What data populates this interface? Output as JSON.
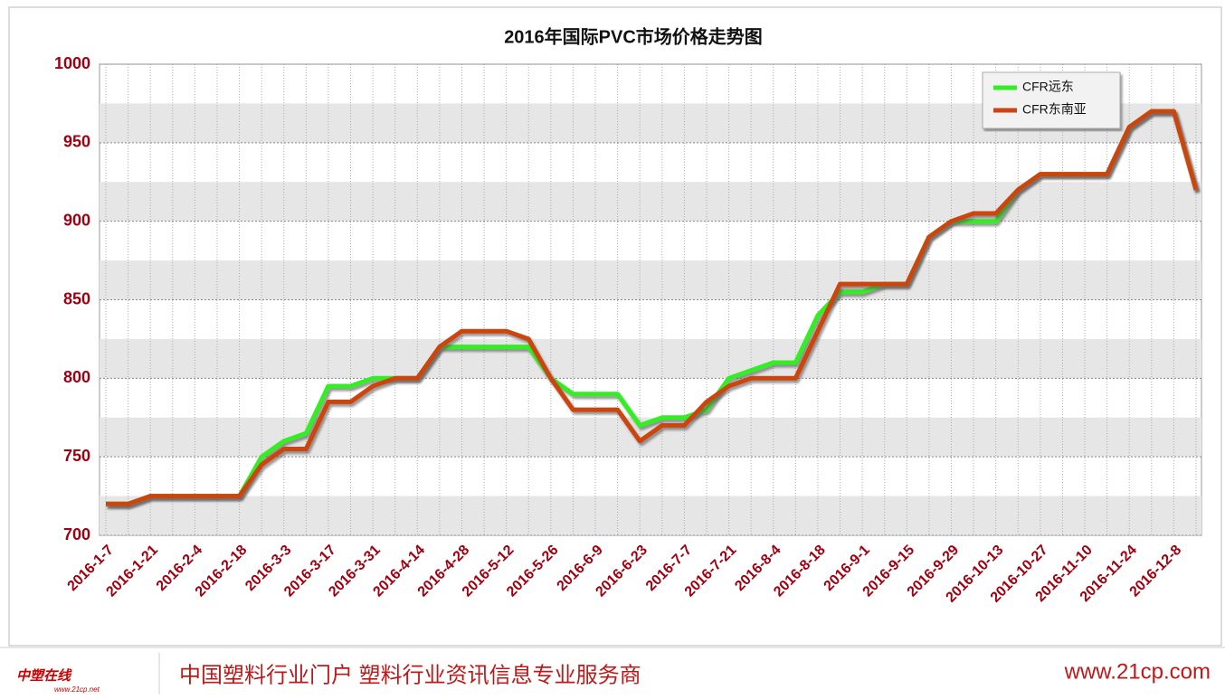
{
  "chart_data": {
    "type": "line",
    "title": "2016年国际PVC市场价格走势图",
    "categories": [
      "2016-1-7",
      null,
      "2016-1-21",
      null,
      "2016-2-4",
      null,
      "2016-2-18",
      null,
      "2016-3-3",
      null,
      "2016-3-17",
      null,
      "2016-3-31",
      null,
      "2016-4-14",
      null,
      "2016-4-28",
      null,
      "2016-5-12",
      null,
      "2016-5-26",
      null,
      "2016-6-9",
      null,
      "2016-6-23",
      null,
      "2016-7-7",
      null,
      "2016-7-21",
      null,
      "2016-8-4",
      null,
      "2016-8-18",
      null,
      "2016-9-1",
      null,
      "2016-9-15",
      null,
      "2016-9-29",
      null,
      "2016-10-13",
      null,
      "2016-10-27",
      null,
      "2016-11-10",
      null,
      "2016-11-24",
      null,
      "2016-12-8",
      null
    ],
    "series": [
      {
        "name": "CFR远东",
        "color": "#33ee22",
        "values": [
          720,
          720,
          725,
          725,
          725,
          725,
          725,
          750,
          760,
          765,
          795,
          795,
          800,
          800,
          800,
          820,
          820,
          820,
          820,
          820,
          800,
          790,
          790,
          790,
          770,
          775,
          775,
          780,
          800,
          805,
          810,
          810,
          840,
          855,
          855,
          860,
          860,
          890,
          900,
          900,
          900,
          920,
          930,
          930,
          930,
          930,
          960,
          970,
          970,
          920
        ]
      },
      {
        "name": "CFR东南亚",
        "color": "#cc4411",
        "values": [
          720,
          720,
          725,
          725,
          725,
          725,
          725,
          745,
          755,
          755,
          785,
          785,
          795,
          800,
          800,
          820,
          830,
          830,
          830,
          825,
          800,
          780,
          780,
          780,
          760,
          770,
          770,
          785,
          795,
          800,
          800,
          800,
          830,
          860,
          860,
          860,
          860,
          890,
          900,
          905,
          905,
          920,
          930,
          930,
          930,
          930,
          960,
          970,
          970,
          920
        ]
      }
    ],
    "ylim": [
      700,
      1000
    ],
    "yticks": [
      700,
      750,
      800,
      850,
      900,
      950,
      1000
    ],
    "grid": true,
    "legend": "top-right"
  },
  "footer": {
    "logo": "中塑在线",
    "logo_url": "www.21cp.net",
    "slogan": "中国塑料行业门户 塑料行业资讯信息专业服务商",
    "site": "www.21cp.com"
  }
}
